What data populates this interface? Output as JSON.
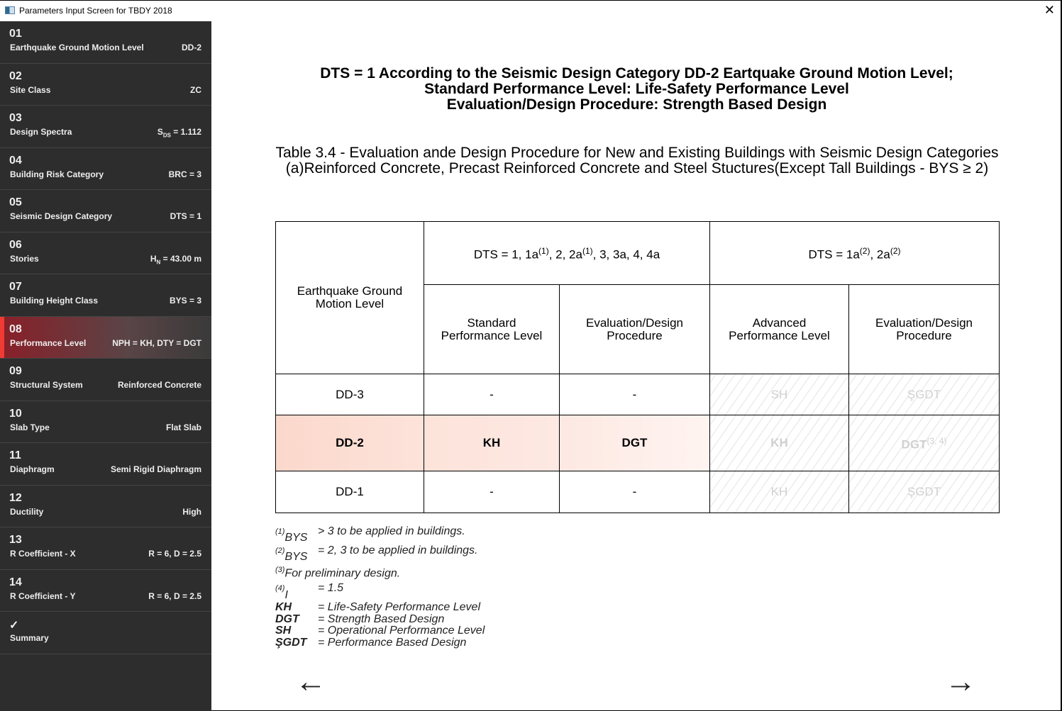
{
  "window": {
    "title": "Parameters Input Screen for TBDY 2018",
    "close_icon": "close-icon"
  },
  "sidebar": {
    "items": [
      {
        "num": "01",
        "label": "Earthquake Ground Motion Level",
        "value": "DD-2"
      },
      {
        "num": "02",
        "label": "Site Class",
        "value": "ZC"
      },
      {
        "num": "03",
        "label": "Design Spectra",
        "value_pre": "S",
        "value_sub": "DS",
        "value": " = 1.112"
      },
      {
        "num": "04",
        "label": "Building Risk Category",
        "value": "BRC = 3"
      },
      {
        "num": "05",
        "label": "Seismic Design Category",
        "value": "DTS = 1"
      },
      {
        "num": "06",
        "label": "Stories",
        "value_pre": "H",
        "value_sub": "N",
        "value": " = 43.00 m"
      },
      {
        "num": "07",
        "label": "Building Height Class",
        "value": "BYS = 3"
      },
      {
        "num": "08",
        "label": "Performance Level",
        "value": "NPH = KH, DTY = DGT",
        "active": true
      },
      {
        "num": "09",
        "label": "Structural System",
        "value": "Reinforced Concrete"
      },
      {
        "num": "10",
        "label": "Slab Type",
        "value": "Flat Slab"
      },
      {
        "num": "11",
        "label": "Diaphragm",
        "value": "Semi Rigid Diaphragm"
      },
      {
        "num": "12",
        "label": "Ductility",
        "value": "High"
      },
      {
        "num": "13",
        "label": "R Coefficient - X",
        "value": "R = 6, D = 2.5"
      },
      {
        "num": "14",
        "label": "R Coefficient - Y",
        "value": "R = 6, D = 2.5"
      },
      {
        "num": "✓",
        "label": "Summary",
        "value": ""
      }
    ],
    "accent": "#ef3b33"
  },
  "main": {
    "heading": [
      "DTS = 1 According to the Seismic Design Category DD-2 Eartquake Ground Motion Level;",
      "Standard Performance Level: Life-Safety Performance Level",
      "Evaluation/Design Procedure: Strength Based Design"
    ],
    "caption": [
      "Table 3.4 - Evaluation ande Design Procedure for New and Existing Buildings with Seismic Design Categories",
      "(a)Reinforced Concrete, Precast Reinforced Concrete and Steel Stuctures(Except Tall Buildings - BYS ≥ 2)"
    ],
    "table": {
      "row_header": "Earthquake Ground Motion Level",
      "group1": {
        "a": "DTS = 1, 1a",
        "s1": "(1)",
        "b": ", 2, 2a",
        "s2": "(1)",
        "c": ", 3, 3a, 4, 4a"
      },
      "group2": {
        "a": "DTS = 1a",
        "s1": "(2)",
        "b": ", 2a",
        "s2": "(2)"
      },
      "cols": [
        "Standard Performance Level",
        "Evaluation/Design Procedure",
        "Advanced Performance Level",
        "Evaluation/Design Procedure"
      ],
      "rows": [
        {
          "level": "DD-3",
          "cells": [
            "-",
            "-",
            "SH",
            "ŞGDT"
          ]
        },
        {
          "level": "DD-2",
          "cells": [
            "KH",
            "DGT",
            "KH",
            "DGT"
          ],
          "sup": "(3, 4)",
          "highlight": "#fbd8cc"
        },
        {
          "level": "DD-1",
          "cells": [
            "-",
            "-",
            "KH",
            "ŞGDT"
          ]
        }
      ]
    },
    "notes": [
      {
        "sup": "(1)",
        "key": "BYS",
        "text": " > 3 to be applied in buildings."
      },
      {
        "sup": "(2)",
        "key": "BYS",
        "text": " = 2, 3 to be applied in buildings."
      },
      {
        "sup": "(3)",
        "key": "",
        "text": "For preliminary design."
      },
      {
        "sup": "(4)",
        "key": "I",
        "text": "= 1.5"
      }
    ],
    "abbrev": [
      {
        "key": "KH",
        "text": "= Life-Safety Performance Level"
      },
      {
        "key": "DGT",
        "text": "= Strength Based Design"
      },
      {
        "key": "SH",
        "text": "= Operational Performance Level"
      },
      {
        "key": "ŞGDT",
        "text": "= Performance Based Design"
      }
    ],
    "nav": {
      "back": "←",
      "next": "→"
    }
  }
}
